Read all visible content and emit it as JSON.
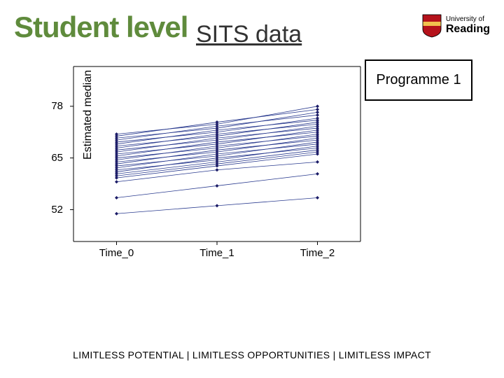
{
  "title": "Student level",
  "subtitle": "SITS data",
  "logo": {
    "line1": "University of",
    "line2": "Reading"
  },
  "callout": "Programme 1",
  "footer": "LIMITLESS POTENTIAL  |  LIMITLESS OPPORTUNITIES  |  LIMITLESS IMPACT",
  "chart": {
    "type": "line",
    "ylabel": "Estimated median",
    "xlabel_ticks": [
      "Time_0",
      "Time_1",
      "Time_2"
    ],
    "x_positions": [
      0.15,
      0.5,
      0.85
    ],
    "ylim": [
      44,
      88
    ],
    "yticks": [
      52,
      65,
      78
    ],
    "plot_bg": "#ffffff",
    "axis_color": "#000000",
    "line_color": "#2a3b8f",
    "marker_color": "#1a1a66",
    "line_width": 0.8,
    "marker_size": 2.5,
    "series": [
      [
        59,
        62,
        64
      ],
      [
        60,
        63,
        66
      ],
      [
        60.5,
        63.5,
        66.5
      ],
      [
        61,
        64,
        67
      ],
      [
        61.5,
        65,
        67.5
      ],
      [
        62,
        64.5,
        68
      ],
      [
        62.5,
        66,
        68.5
      ],
      [
        63,
        65.5,
        69
      ],
      [
        63.5,
        67,
        69.5
      ],
      [
        64,
        66.5,
        70
      ],
      [
        64.5,
        68,
        70.5
      ],
      [
        65,
        67.5,
        71
      ],
      [
        65.5,
        69,
        71.5
      ],
      [
        66,
        68.5,
        72
      ],
      [
        66.5,
        70,
        72.5
      ],
      [
        67,
        69.5,
        73
      ],
      [
        67.5,
        71,
        73.5
      ],
      [
        68,
        70.5,
        74
      ],
      [
        68.5,
        72,
        74.5
      ],
      [
        69,
        71.5,
        75
      ],
      [
        69.5,
        73,
        75.8
      ],
      [
        70,
        72.5,
        76.5
      ],
      [
        70.5,
        74,
        77.2
      ],
      [
        71,
        73.5,
        78
      ],
      [
        55,
        58,
        61
      ],
      [
        51,
        53,
        55
      ]
    ]
  },
  "colors": {
    "title": "#5f8b3c",
    "text": "#000000",
    "shield_red": "#b5121b",
    "shield_yellow": "#f2c14e"
  }
}
